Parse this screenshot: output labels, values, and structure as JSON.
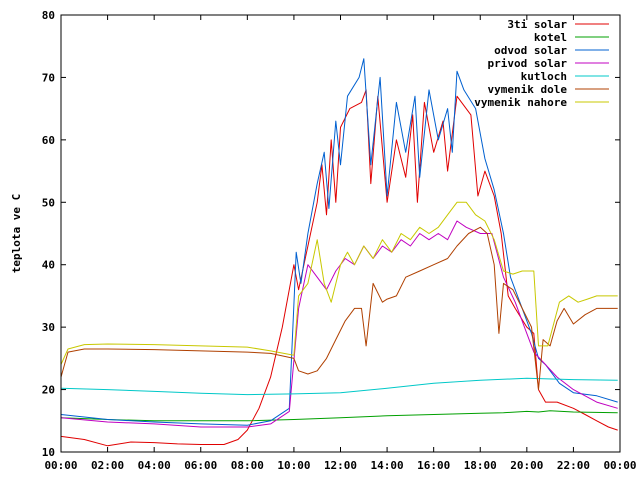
{
  "chart_data": {
    "type": "line",
    "title": "",
    "xlabel": "",
    "ylabel": "teplota ve C",
    "xlim": [
      0,
      24
    ],
    "ylim": [
      10,
      80
    ],
    "x_ticks": [
      0,
      2,
      4,
      6,
      8,
      10,
      12,
      14,
      16,
      18,
      20,
      22,
      24
    ],
    "x_tick_labels": [
      "00:00",
      "02:00",
      "04:00",
      "06:00",
      "08:00",
      "10:00",
      "12:00",
      "14:00",
      "16:00",
      "18:00",
      "20:00",
      "22:00",
      "00:00"
    ],
    "y_ticks": [
      10,
      20,
      30,
      40,
      50,
      60,
      70,
      80
    ],
    "y_tick_labels": [
      "10",
      "20",
      "30",
      "40",
      "50",
      "60",
      "70",
      "80"
    ],
    "grid": false,
    "legend_position": "top-right",
    "series": [
      {
        "name": "3ti solar",
        "color": "#e00000",
        "points": [
          [
            0,
            12.5
          ],
          [
            1,
            12
          ],
          [
            2,
            11
          ],
          [
            3,
            11.6
          ],
          [
            4,
            11.5
          ],
          [
            5,
            11.3
          ],
          [
            6,
            11.2
          ],
          [
            7,
            11.2
          ],
          [
            7.6,
            12
          ],
          [
            8,
            13.5
          ],
          [
            8.5,
            17
          ],
          [
            9,
            22
          ],
          [
            9.5,
            30
          ],
          [
            10,
            40
          ],
          [
            10.2,
            36
          ],
          [
            10.6,
            43
          ],
          [
            11,
            50
          ],
          [
            11.2,
            56
          ],
          [
            11.4,
            48
          ],
          [
            11.6,
            60
          ],
          [
            11.8,
            50
          ],
          [
            12,
            62
          ],
          [
            12.4,
            65
          ],
          [
            12.9,
            66
          ],
          [
            13.1,
            68
          ],
          [
            13.3,
            53
          ],
          [
            13.6,
            67
          ],
          [
            14,
            50
          ],
          [
            14.4,
            60
          ],
          [
            14.8,
            54
          ],
          [
            15.1,
            64
          ],
          [
            15.3,
            50
          ],
          [
            15.6,
            66
          ],
          [
            16,
            58
          ],
          [
            16.4,
            63
          ],
          [
            16.6,
            55
          ],
          [
            17,
            67
          ],
          [
            17.2,
            66
          ],
          [
            17.6,
            64
          ],
          [
            17.9,
            51
          ],
          [
            18.2,
            55
          ],
          [
            18.6,
            51
          ],
          [
            18.9,
            45
          ],
          [
            19.2,
            35
          ],
          [
            19.5,
            33
          ],
          [
            20,
            30
          ],
          [
            20.3,
            29
          ],
          [
            20.5,
            20
          ],
          [
            20.8,
            18
          ],
          [
            21.3,
            18
          ],
          [
            22,
            17
          ],
          [
            22.5,
            16
          ],
          [
            23,
            15
          ],
          [
            23.5,
            14
          ],
          [
            23.9,
            13.5
          ]
        ]
      },
      {
        "name": "kotel",
        "color": "#00a000",
        "points": [
          [
            0,
            15.5
          ],
          [
            2,
            15.2
          ],
          [
            4,
            15
          ],
          [
            6,
            15
          ],
          [
            8,
            15
          ],
          [
            10,
            15.2
          ],
          [
            12,
            15.5
          ],
          [
            14,
            15.8
          ],
          [
            16,
            16
          ],
          [
            18,
            16.2
          ],
          [
            19,
            16.3
          ],
          [
            20,
            16.5
          ],
          [
            20.5,
            16.4
          ],
          [
            21,
            16.6
          ],
          [
            22,
            16.4
          ],
          [
            23.9,
            16.3
          ]
        ]
      },
      {
        "name": "odvod solar",
        "color": "#0060d0",
        "points": [
          [
            0,
            16
          ],
          [
            2,
            15.2
          ],
          [
            4,
            14.8
          ],
          [
            6,
            14.5
          ],
          [
            8,
            14.3
          ],
          [
            9,
            15
          ],
          [
            9.8,
            17
          ],
          [
            10.1,
            42
          ],
          [
            10.3,
            37
          ],
          [
            10.6,
            45
          ],
          [
            11,
            53
          ],
          [
            11.3,
            58
          ],
          [
            11.5,
            49
          ],
          [
            11.8,
            63
          ],
          [
            12,
            56
          ],
          [
            12.3,
            67
          ],
          [
            12.8,
            70
          ],
          [
            13,
            73
          ],
          [
            13.3,
            56
          ],
          [
            13.7,
            70
          ],
          [
            14,
            51
          ],
          [
            14.4,
            66
          ],
          [
            14.8,
            58
          ],
          [
            15.2,
            67
          ],
          [
            15.4,
            54
          ],
          [
            15.8,
            68
          ],
          [
            16.2,
            60
          ],
          [
            16.6,
            65
          ],
          [
            16.8,
            58
          ],
          [
            17,
            71
          ],
          [
            17.3,
            68
          ],
          [
            17.8,
            65
          ],
          [
            18.2,
            57
          ],
          [
            18.6,
            52
          ],
          [
            19,
            45
          ],
          [
            19.3,
            38
          ],
          [
            19.8,
            33
          ],
          [
            20.2,
            29
          ],
          [
            20.5,
            25
          ],
          [
            20.8,
            24
          ],
          [
            21.4,
            21
          ],
          [
            22,
            19.5
          ],
          [
            23,
            19
          ],
          [
            23.9,
            18
          ]
        ]
      },
      {
        "name": "privod solar",
        "color": "#c000c0",
        "points": [
          [
            0,
            15.5
          ],
          [
            2,
            14.8
          ],
          [
            4,
            14.5
          ],
          [
            6,
            14
          ],
          [
            8,
            14
          ],
          [
            9,
            14.5
          ],
          [
            9.8,
            16.5
          ],
          [
            10.2,
            33
          ],
          [
            10.6,
            40
          ],
          [
            11,
            38
          ],
          [
            11.4,
            36
          ],
          [
            11.8,
            39
          ],
          [
            12.2,
            41
          ],
          [
            12.6,
            40
          ],
          [
            13,
            43
          ],
          [
            13.4,
            41
          ],
          [
            13.8,
            43
          ],
          [
            14.2,
            42
          ],
          [
            14.6,
            44
          ],
          [
            15,
            43
          ],
          [
            15.4,
            45
          ],
          [
            15.8,
            44
          ],
          [
            16.2,
            45
          ],
          [
            16.6,
            44
          ],
          [
            17,
            47
          ],
          [
            17.4,
            46
          ],
          [
            18,
            45
          ],
          [
            18.5,
            45
          ],
          [
            19,
            38
          ],
          [
            19.5,
            34
          ],
          [
            20,
            29
          ],
          [
            20.3,
            26
          ],
          [
            20.8,
            24
          ],
          [
            21.3,
            22
          ],
          [
            22,
            20
          ],
          [
            23,
            18
          ],
          [
            23.9,
            17
          ]
        ]
      },
      {
        "name": "kutloch",
        "color": "#00c8c8",
        "points": [
          [
            0,
            20.2
          ],
          [
            2,
            20
          ],
          [
            4,
            19.7
          ],
          [
            6,
            19.4
          ],
          [
            8,
            19.2
          ],
          [
            10,
            19.3
          ],
          [
            12,
            19.5
          ],
          [
            14,
            20.2
          ],
          [
            16,
            21
          ],
          [
            18,
            21.5
          ],
          [
            20,
            21.8
          ],
          [
            22,
            21.6
          ],
          [
            23.9,
            21.5
          ]
        ]
      },
      {
        "name": "vymenik dole",
        "color": "#b04000",
        "points": [
          [
            0,
            22
          ],
          [
            0.3,
            26
          ],
          [
            1,
            26.5
          ],
          [
            2,
            26.5
          ],
          [
            4,
            26.4
          ],
          [
            6,
            26.2
          ],
          [
            8,
            26
          ],
          [
            9,
            25.8
          ],
          [
            10,
            25
          ],
          [
            10.2,
            23
          ],
          [
            10.6,
            22.5
          ],
          [
            11,
            23
          ],
          [
            11.4,
            25
          ],
          [
            11.8,
            28
          ],
          [
            12.2,
            31
          ],
          [
            12.6,
            33
          ],
          [
            12.9,
            33
          ],
          [
            13.1,
            27
          ],
          [
            13.4,
            37
          ],
          [
            13.8,
            34
          ],
          [
            14,
            34.5
          ],
          [
            14.4,
            35
          ],
          [
            14.8,
            38
          ],
          [
            15.4,
            39
          ],
          [
            16,
            40
          ],
          [
            16.6,
            41
          ],
          [
            17,
            43
          ],
          [
            17.5,
            45
          ],
          [
            18,
            46
          ],
          [
            18.3,
            45
          ],
          [
            18.6,
            40
          ],
          [
            18.8,
            29
          ],
          [
            19,
            37
          ],
          [
            19.4,
            36
          ],
          [
            19.8,
            33
          ],
          [
            20.2,
            30
          ],
          [
            20.5,
            20
          ],
          [
            20.7,
            28
          ],
          [
            21,
            27
          ],
          [
            21.3,
            31
          ],
          [
            21.6,
            33
          ],
          [
            22,
            30.5
          ],
          [
            22.5,
            32
          ],
          [
            23,
            33
          ],
          [
            23.9,
            33
          ]
        ]
      },
      {
        "name": "vymenik nahore",
        "color": "#c8c800",
        "points": [
          [
            0,
            24
          ],
          [
            0.3,
            26.5
          ],
          [
            1,
            27.2
          ],
          [
            2,
            27.3
          ],
          [
            4,
            27.2
          ],
          [
            6,
            27
          ],
          [
            8,
            26.8
          ],
          [
            9,
            26.2
          ],
          [
            10,
            25.5
          ],
          [
            10.2,
            35
          ],
          [
            10.6,
            37
          ],
          [
            11,
            44
          ],
          [
            11.3,
            37
          ],
          [
            11.6,
            34
          ],
          [
            12,
            40
          ],
          [
            12.3,
            42
          ],
          [
            12.6,
            40
          ],
          [
            13,
            43
          ],
          [
            13.4,
            41
          ],
          [
            13.8,
            44
          ],
          [
            14.2,
            42
          ],
          [
            14.6,
            45
          ],
          [
            15,
            44
          ],
          [
            15.4,
            46
          ],
          [
            15.8,
            45
          ],
          [
            16.2,
            46
          ],
          [
            16.6,
            48
          ],
          [
            17,
            50
          ],
          [
            17.4,
            50
          ],
          [
            17.8,
            48
          ],
          [
            18.2,
            47
          ],
          [
            18.6,
            44
          ],
          [
            19,
            39
          ],
          [
            19.4,
            38.5
          ],
          [
            19.8,
            39
          ],
          [
            20.3,
            39
          ],
          [
            20.5,
            27
          ],
          [
            20.9,
            27
          ],
          [
            21.4,
            34
          ],
          [
            21.8,
            35
          ],
          [
            22.2,
            34
          ],
          [
            22.6,
            34.5
          ],
          [
            23,
            35
          ],
          [
            23.9,
            35
          ]
        ]
      }
    ]
  }
}
